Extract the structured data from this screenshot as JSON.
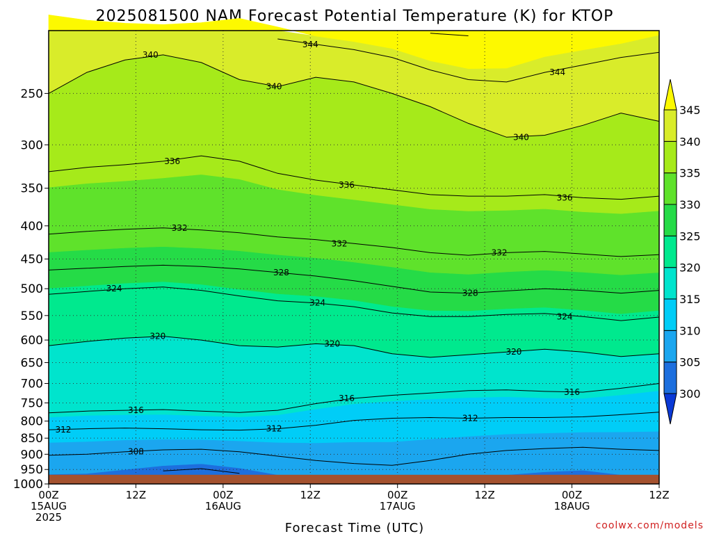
{
  "chart_data": {
    "type": "contour",
    "title": "2025081500 NAM Forecast Potential Temperature (K) for KTOP",
    "xlabel": "Forecast Time (UTC)",
    "ylabel": "",
    "credit": "coolwx.com/models",
    "x_ticks": [
      {
        "hours": 0,
        "lines": [
          "00Z",
          "15AUG",
          "2025"
        ]
      },
      {
        "hours": 12,
        "lines": [
          "12Z"
        ]
      },
      {
        "hours": 24,
        "lines": [
          "00Z",
          "16AUG"
        ]
      },
      {
        "hours": 36,
        "lines": [
          "12Z"
        ]
      },
      {
        "hours": 48,
        "lines": [
          "00Z",
          "17AUG"
        ]
      },
      {
        "hours": 60,
        "lines": [
          "12Z"
        ]
      },
      {
        "hours": 72,
        "lines": [
          "00Z",
          "18AUG"
        ]
      },
      {
        "hours": 84,
        "lines": [
          "12Z"
        ]
      }
    ],
    "xlim_hours": [
      0,
      84
    ],
    "y_axis_scale": "log-pressure",
    "y_ticks_hPa": [
      250,
      300,
      350,
      400,
      450,
      500,
      550,
      600,
      650,
      700,
      750,
      800,
      850,
      900,
      950,
      1000
    ],
    "ylim_hPa": [
      200,
      1000
    ],
    "surface_pressure_hPa": 968,
    "grid": true,
    "colorbar": {
      "ticks": [
        300,
        305,
        310,
        315,
        320,
        325,
        330,
        335,
        340,
        345
      ],
      "colors": [
        "#0a39d6",
        "#1d6fde",
        "#1ba6ef",
        "#00cdf7",
        "#00e4cd",
        "#00e98e",
        "#25db47",
        "#5fe22b",
        "#a6ea1a",
        "#d9ec2a",
        "#fdf900"
      ],
      "extend": "both",
      "placement": "right"
    },
    "contour_interval_K": 4,
    "terrain_color": "#a4522f",
    "levels": [
      {
        "theta": 308,
        "label": "308",
        "label_hours": 12,
        "pressure_hPa": [
          903,
          900,
          892,
          886,
          884,
          892,
          906,
          920,
          930,
          936,
          920,
          900,
          888,
          882,
          878,
          884,
          888
        ]
      },
      {
        "theta": 312,
        "label": "312",
        "label_hours": 2,
        "pressure_hPa": [
          825,
          822,
          820,
          822,
          825,
          826,
          822,
          812,
          798,
          792,
          790,
          792,
          790,
          790,
          788,
          782,
          775
        ]
      },
      {
        "theta": 312,
        "label": "312",
        "label_hours": 31,
        "pressure_hPa": null
      },
      {
        "theta": 312,
        "label": "312",
        "label_hours": 58,
        "pressure_hPa": null
      },
      {
        "theta": 316,
        "label": "316",
        "label_hours": 12,
        "pressure_hPa": [
          777,
          772,
          770,
          768,
          772,
          776,
          770,
          752,
          738,
          730,
          724,
          718,
          716,
          720,
          722,
          712,
          700
        ]
      },
      {
        "theta": 316,
        "label": "316",
        "label_hours": 41,
        "pressure_hPa": null
      },
      {
        "theta": 316,
        "label": "316",
        "label_hours": 72,
        "pressure_hPa": null
      },
      {
        "theta": 320,
        "label": "320",
        "label_hours": 15,
        "pressure_hPa": [
          612,
          603,
          596,
          592,
          600,
          612,
          615,
          608,
          612,
          630,
          638,
          632,
          626,
          620,
          626,
          636,
          630
        ]
      },
      {
        "theta": 320,
        "label": "320",
        "label_hours": 39,
        "pressure_hPa": null
      },
      {
        "theta": 320,
        "label": "320",
        "label_hours": 64,
        "pressure_hPa": null
      },
      {
        "theta": 324,
        "label": "324",
        "label_hours": 9,
        "pressure_hPa": [
          510,
          505,
          500,
          497,
          503,
          513,
          522,
          526,
          533,
          545,
          552,
          552,
          548,
          546,
          552,
          560,
          553
        ]
      },
      {
        "theta": 324,
        "label": "324",
        "label_hours": 37,
        "pressure_hPa": null
      },
      {
        "theta": 324,
        "label": "324",
        "label_hours": 71,
        "pressure_hPa": null
      },
      {
        "theta": 328,
        "label": "328",
        "label_hours": 32,
        "pressure_hPa": [
          468,
          465,
          462,
          460,
          462,
          466,
          472,
          478,
          486,
          496,
          506,
          508,
          504,
          500,
          503,
          508,
          503
        ]
      },
      {
        "theta": 328,
        "label": "328",
        "label_hours": 58,
        "pressure_hPa": null
      },
      {
        "theta": 332,
        "label": "332",
        "label_hours": 18,
        "pressure_hPa": [
          412,
          408,
          405,
          403,
          406,
          410,
          416,
          420,
          426,
          432,
          440,
          444,
          440,
          438,
          442,
          446,
          443
        ]
      },
      {
        "theta": 332,
        "label": "332",
        "label_hours": 40,
        "pressure_hPa": null
      },
      {
        "theta": 332,
        "label": "332",
        "label_hours": 62,
        "pressure_hPa": null
      },
      {
        "theta": 336,
        "label": "336",
        "label_hours": 17,
        "pressure_hPa": [
          330,
          325,
          322,
          318,
          312,
          318,
          332,
          340,
          346,
          352,
          358,
          360,
          360,
          358,
          362,
          364,
          360
        ]
      },
      {
        "theta": 336,
        "label": "336",
        "label_hours": 41,
        "pressure_hPa": null
      },
      {
        "theta": 336,
        "label": "336",
        "label_hours": 71,
        "pressure_hPa": null
      },
      {
        "theta": 340,
        "label": "340",
        "label_hours": 14,
        "pressure_hPa": [
          250,
          232,
          222,
          218,
          224,
          238,
          244,
          236,
          240,
          250,
          262,
          278,
          292,
          290,
          280,
          268,
          276
        ]
      },
      {
        "theta": 340,
        "label": "340",
        "label_hours": 31,
        "pressure_hPa": null
      },
      {
        "theta": 340,
        "label": "340",
        "label_hours": 65,
        "pressure_hPa": null
      },
      {
        "theta": 344,
        "label": "344",
        "label_hours": 36,
        "pressure_hPa": [
          200,
          200,
          200,
          200,
          200,
          200,
          206,
          210,
          214,
          220,
          230,
          238,
          240,
          232,
          226,
          220,
          216
        ]
      },
      {
        "theta": 344,
        "label": "344",
        "label_hours": 70,
        "pressure_hPa": null
      }
    ]
  }
}
